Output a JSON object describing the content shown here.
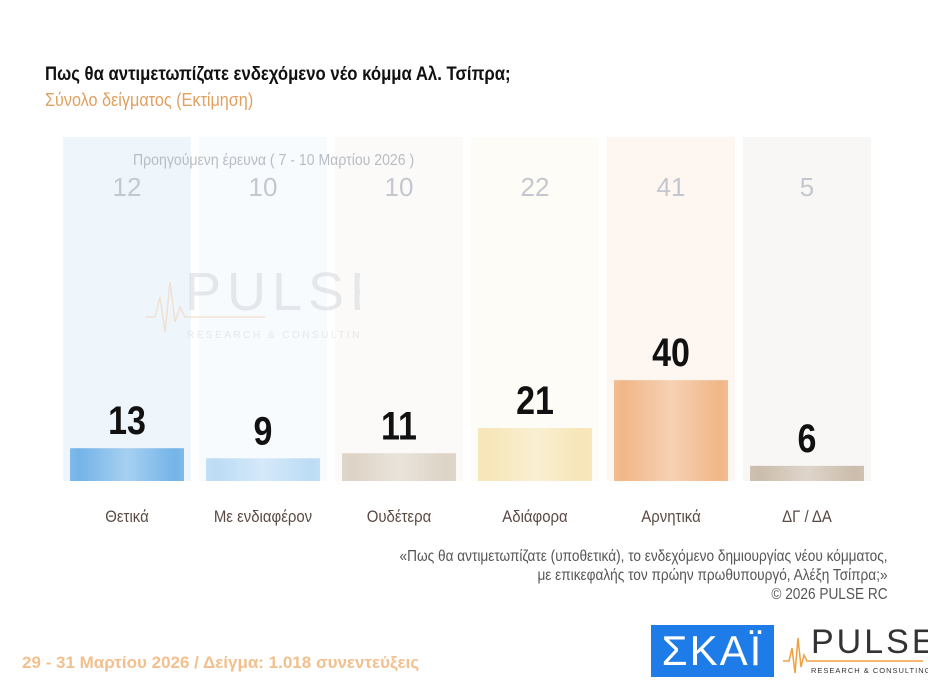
{
  "header": {
    "title": "Πως θα αντιμετωπίζατε ενδεχόμενο νέο κόμμα Αλ. Τσίπρα;",
    "subtitle": "Σύνολο δείγματος  (Εκτίμηση)"
  },
  "chart_data": {
    "type": "bar",
    "title": "Πως θα αντιμετωπίζατε ενδεχόμενο νέο κόμμα Αλ. Τσίπρα;",
    "subtitle": "Σύνολο δείγματος  (Εκτίμηση)",
    "categories": [
      "Θετικά",
      "Με ενδιαφέρον",
      "Ουδέτερα",
      "Αδιάφορα",
      "Αρνητικά",
      "ΔΓ / ΔΑ"
    ],
    "series": [
      {
        "name": "",
        "values": [
          13,
          9,
          11,
          21,
          40,
          6
        ]
      },
      {
        "name": "Προηγούμενη έρευνα ( 7 - 10 Μαρτίου 2026 )",
        "values": [
          12,
          10,
          10,
          22,
          41,
          5
        ]
      }
    ],
    "colors": [
      "#74b4e8",
      "#bcdcf5",
      "#ddd3c6",
      "#f6e6b8",
      "#f2b688",
      "#cbbcac"
    ],
    "grid": false,
    "ylim": [
      0,
      100
    ]
  },
  "notes": {
    "line1": "«Πως θα αντιμετωπίζατε (υποθετικά), το ενδεχόμενο δημιουργίας νέου κόμματος,",
    "line2": "με επικεφαλής τον πρώην πρωθυπουργό, Αλέξη Τσίπρα;»",
    "copyright": "©  2026  PULSE RC"
  },
  "footer": {
    "text": "29 - 31  Μαρτίου 2026  /  Δείγμα:  1.018 συνεντεύξεις"
  },
  "logos": {
    "skai": "ΣΚΑΪ",
    "pulse": "PULSE",
    "pulse_tagline": "RESEARCH & CONSULTING"
  }
}
